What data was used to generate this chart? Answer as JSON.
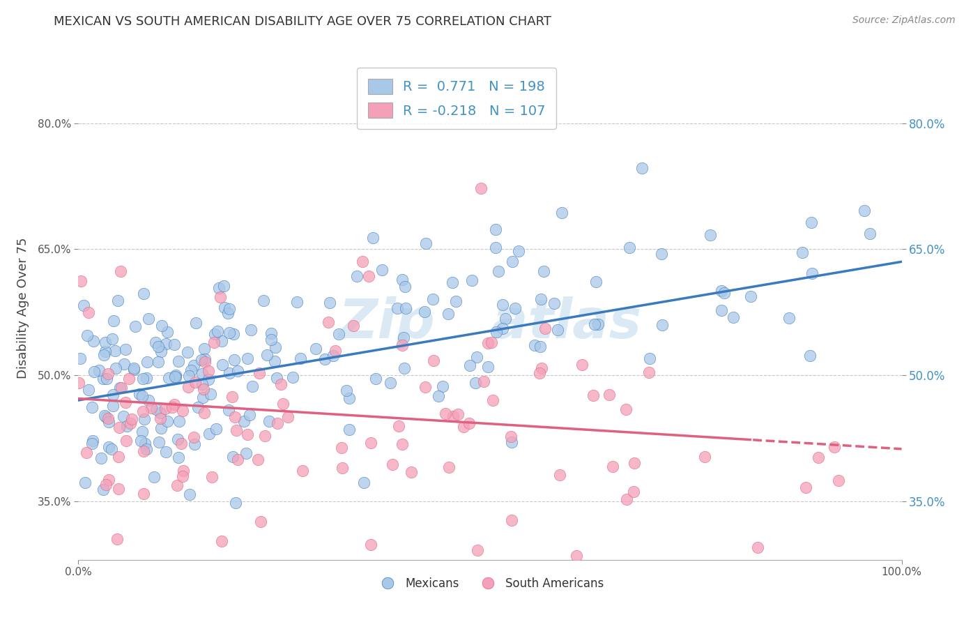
{
  "title": "MEXICAN VS SOUTH AMERICAN DISABILITY AGE OVER 75 CORRELATION CHART",
  "source": "Source: ZipAtlas.com",
  "ylabel": "Disability Age Over 75",
  "xlim": [
    0.0,
    1.0
  ],
  "ylim": [
    0.28,
    0.88
  ],
  "ytick_labels": [
    "35.0%",
    "50.0%",
    "65.0%",
    "80.0%"
  ],
  "ytick_values": [
    0.35,
    0.5,
    0.65,
    0.8
  ],
  "xtick_labels": [
    "0.0%",
    "100.0%"
  ],
  "xtick_values": [
    0.0,
    1.0
  ],
  "blue_color": "#a8c8e8",
  "pink_color": "#f4a0b8",
  "blue_line_color": "#3a7abf",
  "pink_line_color": "#e06080",
  "right_tick_color": "#4292c6",
  "watermark_color": "#b8d4ea",
  "blue_r": 0.771,
  "blue_n": 198,
  "pink_r": -0.218,
  "pink_n": 107,
  "blue_intercept": 0.47,
  "blue_slope": 0.165,
  "pink_intercept": 0.472,
  "pink_slope": -0.06,
  "background_color": "#ffffff",
  "grid_color": "#c8c8c8"
}
